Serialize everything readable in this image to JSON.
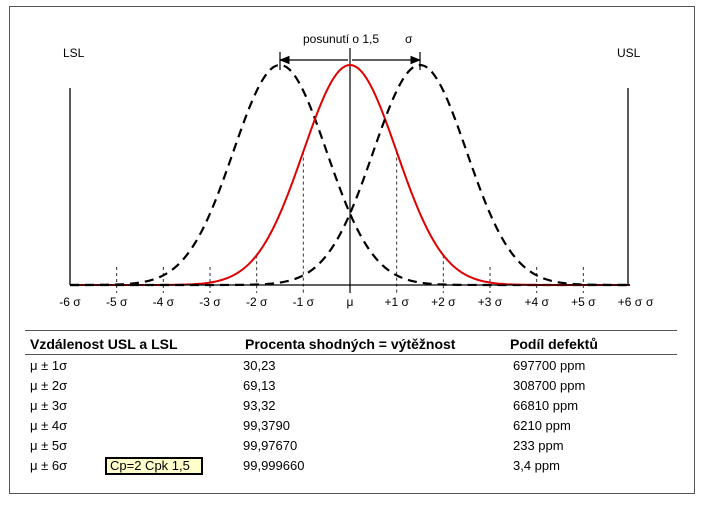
{
  "chart_data": {
    "type": "line",
    "annotation_shift": "posunutí o 1,5",
    "annotation_sigma": "σ",
    "lsl_label": "LSL",
    "usl_label": "USL",
    "x_tick_labels": [
      "-6 σ",
      "-5 σ",
      "-4 σ",
      "-3 σ",
      "-2 σ",
      "-1 σ",
      "μ",
      "+1 σ",
      "+2 σ",
      "+3 σ",
      "+4 σ",
      "+5 σ",
      "+6 σ"
    ],
    "x_unit_label": "σ",
    "xlim": [
      -6,
      6
    ],
    "series": [
      {
        "style": "dashed",
        "color": "#000000",
        "mean": -1.5,
        "sd": 1
      },
      {
        "style": "solid",
        "color": "#e00000",
        "mean": 0,
        "sd": 1
      },
      {
        "style": "dashed",
        "color": "#000000",
        "mean": 1.5,
        "sd": 1
      }
    ],
    "shift": 1.5,
    "lsl": -6,
    "usl": 6
  },
  "table": {
    "headers": [
      "Vzdálenost USL a LSL",
      "Procenta shodných = výtěžnost",
      "Podíl defektů"
    ],
    "rows": [
      {
        "distance": "μ ± 1σ",
        "yield": "30,23",
        "defects": "697700 ppm"
      },
      {
        "distance": "μ ± 2σ",
        "yield": "69,13",
        "defects": "308700 ppm"
      },
      {
        "distance": "μ ± 3σ",
        "yield": "93,32",
        "defects": "66810 ppm"
      },
      {
        "distance": "μ ± 4σ",
        "yield": "99,3790",
        "defects": "6210 ppm"
      },
      {
        "distance": "μ ± 5σ",
        "yield": "99,97670",
        "defects": "233 ppm"
      },
      {
        "distance": "μ ± 6σ",
        "yield": "99,999660",
        "defects": "3,4 ppm"
      }
    ],
    "badge": "Cp=2 Cpk 1,5"
  }
}
